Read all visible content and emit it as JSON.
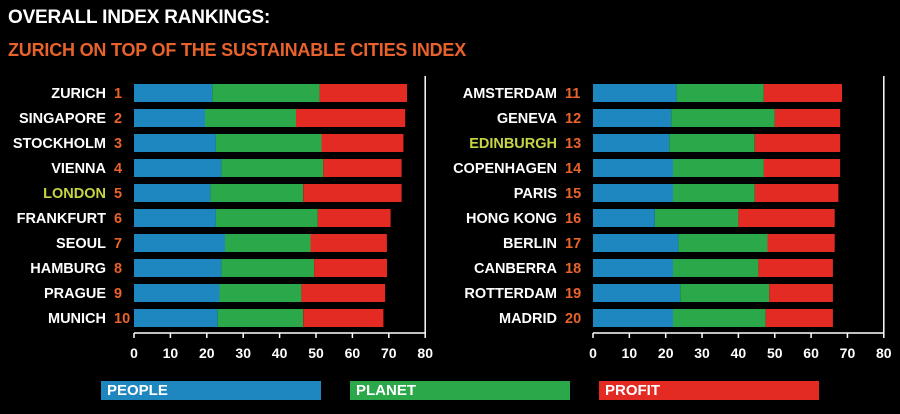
{
  "title": "OVERALL INDEX RANKINGS:",
  "subtitle": "ZURICH ON TOP OF THE SUSTAINABLE CITIES INDEX",
  "colors": {
    "people": "#1f87c0",
    "planet": "#2aa84a",
    "profit": "#e32b24",
    "highlight": "#c7d545",
    "rank": "#e8622c",
    "axis": "#ffffff"
  },
  "chart_data": [
    {
      "type": "bar",
      "orientation": "horizontal",
      "stacked": true,
      "categories": [
        "ZURICH",
        "SINGAPORE",
        "STOCKHOLM",
        "VIENNA",
        "LONDON",
        "FRANKFURT",
        "SEOUL",
        "HAMBURG",
        "PRAGUE",
        "MUNICH"
      ],
      "ranks": [
        "1",
        "2",
        "3",
        "4",
        "5",
        "6",
        "7",
        "8",
        "9",
        "10"
      ],
      "highlighted": [
        "LONDON"
      ],
      "series": [
        {
          "name": "PEOPLE",
          "values": [
            21.5,
            19.5,
            22.5,
            24,
            21,
            22.5,
            25,
            24,
            23.5,
            23
          ]
        },
        {
          "name": "PLANET",
          "values": [
            29.5,
            25,
            29,
            28,
            25.5,
            28,
            23.5,
            25.5,
            22.5,
            23.5
          ]
        },
        {
          "name": "PROFIT",
          "values": [
            24,
            30,
            22.5,
            21.5,
            27,
            20,
            21,
            20,
            23,
            22
          ]
        }
      ],
      "xlim": [
        0,
        80
      ],
      "xticks": [
        "0",
        "10",
        "20",
        "30",
        "40",
        "50",
        "60",
        "70",
        "80"
      ]
    },
    {
      "type": "bar",
      "orientation": "horizontal",
      "stacked": true,
      "categories": [
        "AMSTERDAM",
        "GENEVA",
        "EDINBURGH",
        "COPENHAGEN",
        "PARIS",
        "HONG KONG",
        "BERLIN",
        "CANBERRA",
        "ROTTERDAM",
        "MADRID"
      ],
      "ranks": [
        "11",
        "12",
        "13",
        "14",
        "15",
        "16",
        "17",
        "18",
        "19",
        "20"
      ],
      "highlighted": [
        "EDINBURGH"
      ],
      "series": [
        {
          "name": "PEOPLE",
          "values": [
            23,
            21.5,
            21,
            22,
            22,
            17,
            23.5,
            22,
            24,
            22
          ]
        },
        {
          "name": "PLANET",
          "values": [
            24,
            28.5,
            23.5,
            25,
            22.5,
            23,
            24.5,
            23.5,
            24.5,
            25.5
          ]
        },
        {
          "name": "PROFIT",
          "values": [
            21.5,
            18,
            23.5,
            21,
            23,
            26.5,
            18.5,
            20.5,
            17.5,
            18.5
          ]
        }
      ],
      "xlim": [
        0,
        80
      ],
      "xticks": [
        "0",
        "10",
        "20",
        "30",
        "40",
        "50",
        "60",
        "70",
        "80"
      ]
    }
  ],
  "legend": [
    {
      "label": "PEOPLE",
      "color": "#1f87c0"
    },
    {
      "label": "PLANET",
      "color": "#2aa84a"
    },
    {
      "label": "PROFIT",
      "color": "#e32b24"
    }
  ]
}
